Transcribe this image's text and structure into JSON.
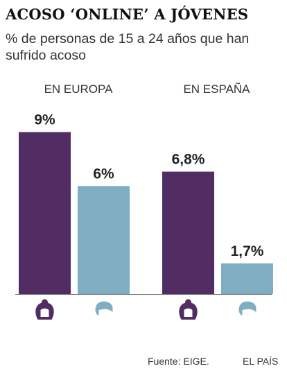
{
  "title": "ACOSO ‘ONLINE’ A JÓVENES",
  "subtitle": "% de personas de 15 a 24 años que han sufrido acoso",
  "source": "Fuente: EIGE.",
  "credit": "EL PAÍS",
  "colors": {
    "women": "#512d64",
    "men": "#7fadc2",
    "axis": "#555555"
  },
  "icons": {
    "women": "woman-head-icon",
    "men": "man-head-icon"
  },
  "chart_data": {
    "type": "bar",
    "categories": [
      "EN EUROPA",
      "EN ESPAÑA"
    ],
    "ylim": [
      0,
      9.25
    ],
    "series": [
      {
        "key": "women",
        "values": [
          9,
          6.8
        ],
        "labels": [
          "9%",
          "6,8%"
        ]
      },
      {
        "key": "men",
        "values": [
          6,
          1.7
        ],
        "labels": [
          "6%",
          "1,7%"
        ]
      }
    ],
    "grid": false,
    "legend": "none"
  }
}
